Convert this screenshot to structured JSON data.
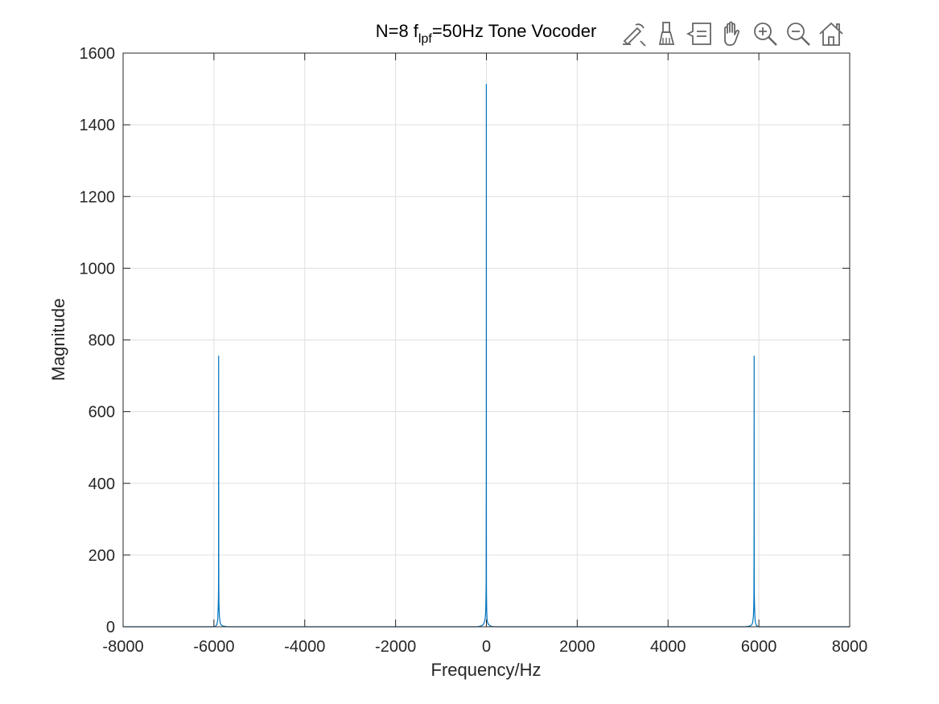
{
  "chart_data": {
    "type": "line",
    "title": {
      "prefix": "N=8 f",
      "subscript": "lpf",
      "suffix": "=50Hz Tone Vocoder"
    },
    "xlabel": "Frequency/Hz",
    "ylabel": "Magnitude",
    "xlim": [
      -8000,
      8000
    ],
    "ylim": [
      0,
      1600
    ],
    "xticks": [
      -8000,
      -6000,
      -4000,
      -2000,
      0,
      2000,
      4000,
      6000,
      8000
    ],
    "yticks": [
      0,
      200,
      400,
      600,
      800,
      1000,
      1200,
      1400,
      1600
    ],
    "grid": true,
    "series": [
      {
        "color": "#0072BD",
        "x": [
          -8000,
          -6000,
          -5960,
          -5940,
          -5925,
          -5915,
          -5910,
          -5905,
          -5900,
          -5898,
          -5896,
          -5894,
          -5892,
          -5890,
          -5885,
          -5880,
          -5870,
          -5860,
          -5840,
          -5800,
          -5700,
          -2000,
          -200,
          -120,
          -80,
          -60,
          -40,
          -25,
          -15,
          -10,
          -6,
          -3,
          -1,
          0,
          1,
          3,
          6,
          10,
          15,
          25,
          40,
          60,
          80,
          120,
          200,
          2000,
          5700,
          5800,
          5840,
          5860,
          5870,
          5880,
          5885,
          5890,
          5892,
          5894,
          5896,
          5898,
          5900,
          5905,
          5910,
          5915,
          5925,
          5940,
          5960,
          6000,
          8000
        ],
        "y": [
          0,
          0,
          2,
          5,
          12,
          22,
          40,
          60,
          90,
          140,
          755,
          200,
          110,
          70,
          45,
          30,
          18,
          10,
          5,
          2,
          0,
          0,
          0,
          2,
          5,
          8,
          15,
          25,
          45,
          80,
          120,
          440,
          1513,
          300,
          110,
          80,
          55,
          35,
          20,
          12,
          8,
          5,
          3,
          1,
          0,
          0,
          0,
          2,
          5,
          10,
          18,
          30,
          45,
          70,
          110,
          200,
          755,
          140,
          90,
          60,
          40,
          22,
          12,
          5,
          2,
          0,
          0
        ]
      }
    ]
  },
  "toolbar": {
    "icons": [
      "edit-export-icon",
      "brush-icon",
      "data-tips-icon",
      "pan-icon",
      "zoom-in-icon",
      "zoom-out-icon",
      "home-icon"
    ]
  }
}
